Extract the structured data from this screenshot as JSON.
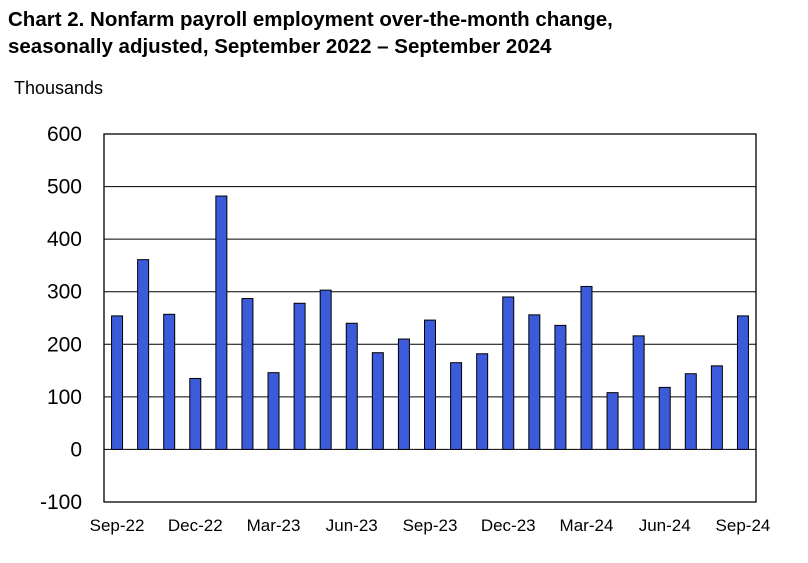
{
  "title_line1": "Chart 2. Nonfarm payroll employment over-the-month change,",
  "title_line2": "seasonally adjusted, September 2022 – September 2024",
  "unit_label": "Thousands",
  "chart_data": {
    "type": "bar",
    "title": "Chart 2. Nonfarm payroll employment over-the-month change, seasonally adjusted, September 2022 – September 2024",
    "ylabel": "Thousands",
    "xlabel": "",
    "ylim": [
      -100,
      600
    ],
    "yticks": [
      600,
      500,
      400,
      300,
      200,
      100,
      0,
      -100
    ],
    "xtick_labels": [
      "Sep-22",
      "Dec-22",
      "Mar-23",
      "Jun-23",
      "Sep-23",
      "Dec-23",
      "Mar-24",
      "Jun-24",
      "Sep-24"
    ],
    "categories": [
      "Sep-22",
      "Oct-22",
      "Nov-22",
      "Dec-22",
      "Jan-23",
      "Feb-23",
      "Mar-23",
      "Apr-23",
      "May-23",
      "Jun-23",
      "Jul-23",
      "Aug-23",
      "Sep-23",
      "Oct-23",
      "Nov-23",
      "Dec-23",
      "Jan-24",
      "Feb-24",
      "Mar-24",
      "Apr-24",
      "May-24",
      "Jun-24",
      "Jul-24",
      "Aug-24",
      "Sep-24"
    ],
    "values": [
      254,
      361,
      257,
      135,
      482,
      287,
      146,
      278,
      303,
      240,
      184,
      210,
      246,
      165,
      182,
      290,
      256,
      236,
      310,
      108,
      216,
      118,
      144,
      159,
      254
    ],
    "grid": true,
    "bar_color": "#3b5bdb",
    "bar_edge_color": "#000000"
  }
}
